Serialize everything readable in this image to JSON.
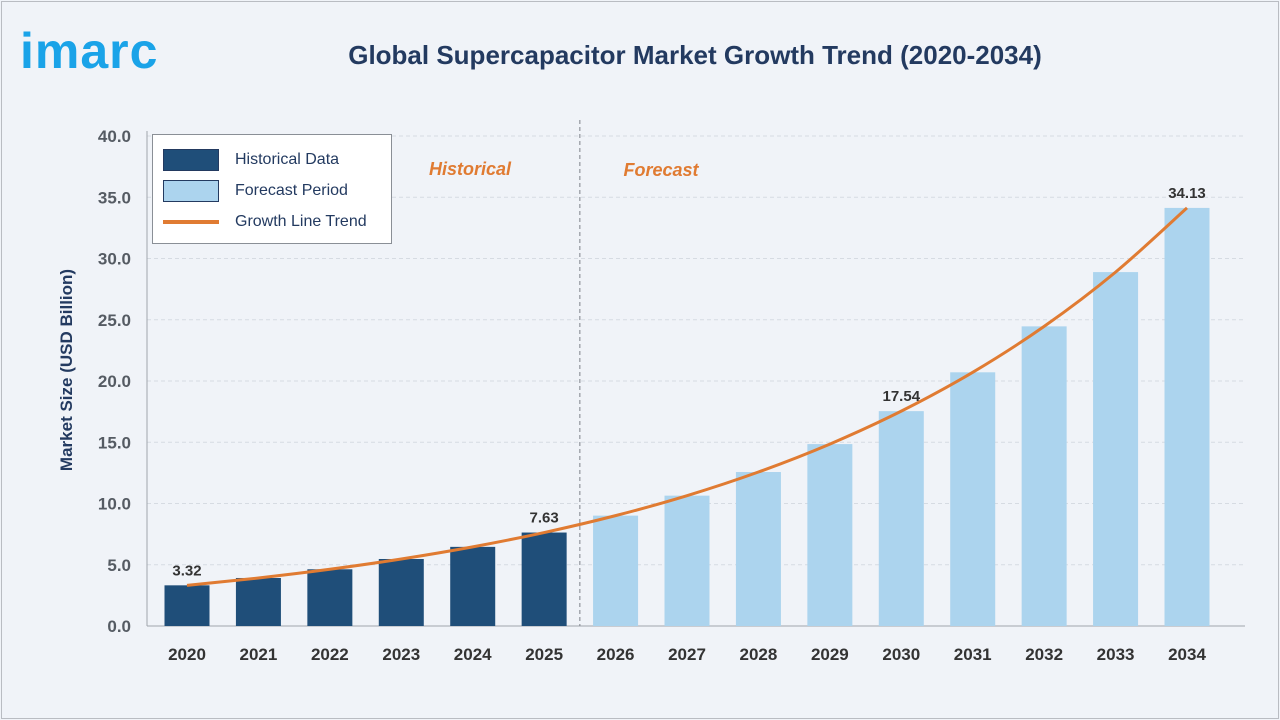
{
  "brand": {
    "logo_text": "imarc"
  },
  "chart_data": {
    "type": "bar",
    "title": "Global Supercapacitor Market Growth Trend (2020-2034)",
    "ylabel": "Market Size (USD Billion)",
    "xlabel": "",
    "ylim": [
      0,
      40
    ],
    "yticks": [
      "0.0",
      "5.0",
      "10.0",
      "15.0",
      "20.0",
      "25.0",
      "30.0",
      "35.0",
      "40.0"
    ],
    "grid": true,
    "legend_position": "top-left",
    "categories": [
      "2020",
      "2021",
      "2022",
      "2023",
      "2024",
      "2025",
      "2026",
      "2027",
      "2028",
      "2029",
      "2030",
      "2031",
      "2032",
      "2033",
      "2034"
    ],
    "series": [
      {
        "name": "Historical Data",
        "color": "#1f4e79",
        "values": [
          3.32,
          3.92,
          4.63,
          5.47,
          6.46,
          7.63,
          null,
          null,
          null,
          null,
          null,
          null,
          null,
          null,
          null
        ]
      },
      {
        "name": "Forecast Period",
        "color": "#acd4ee",
        "values": [
          null,
          null,
          null,
          null,
          null,
          null,
          9.01,
          10.64,
          12.57,
          14.85,
          17.54,
          20.71,
          24.46,
          28.89,
          34.13
        ]
      },
      {
        "name": "Growth Line Trend",
        "type": "line",
        "color": "#e07b32",
        "values": [
          3.32,
          3.92,
          4.63,
          5.47,
          6.46,
          7.63,
          9.01,
          10.64,
          12.57,
          14.85,
          17.54,
          20.71,
          24.46,
          28.89,
          34.13
        ]
      }
    ],
    "data_labels": {
      "2020": "3.32",
      "2025": "7.63",
      "2030": "17.54",
      "2034": "34.13"
    },
    "annotations": {
      "historical": "Historical",
      "forecast": "Forecast"
    }
  }
}
